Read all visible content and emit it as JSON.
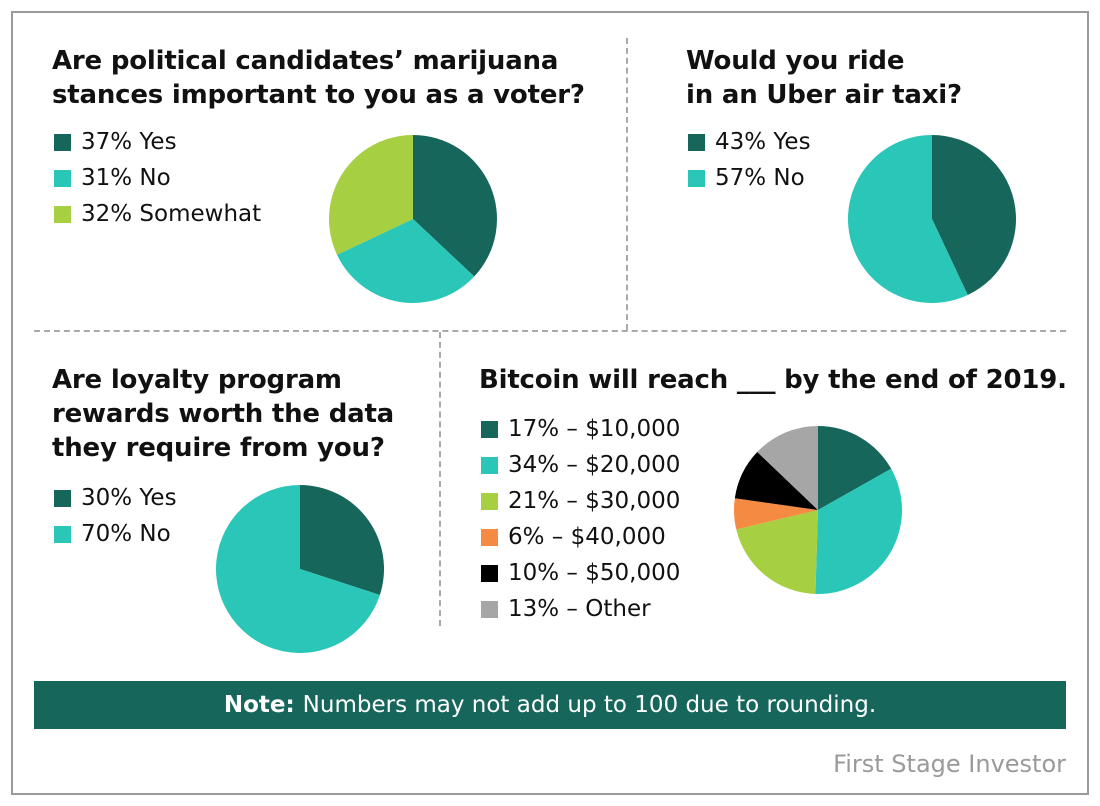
{
  "chart_data": [
    {
      "type": "pie",
      "title_lines": [
        "Are political candidates’ marijuana",
        "stances important to you as a voter?"
      ],
      "slices": [
        {
          "label": "37% Yes",
          "value": 37,
          "color": "#17665c"
        },
        {
          "label": "31% No",
          "value": 31,
          "color": "#2ac6b8"
        },
        {
          "label": "32% Somewhat",
          "value": 32,
          "color": "#a7cf42"
        }
      ]
    },
    {
      "type": "pie",
      "title_lines": [
        "Would you ride",
        "in an Uber air taxi?"
      ],
      "slices": [
        {
          "label": "43% Yes",
          "value": 43,
          "color": "#17665c"
        },
        {
          "label": "57% No",
          "value": 57,
          "color": "#2ac6b8"
        }
      ]
    },
    {
      "type": "pie",
      "title_lines": [
        "Are loyalty program",
        "rewards worth the data",
        "they require from you?"
      ],
      "slices": [
        {
          "label": "30% Yes",
          "value": 30,
          "color": "#17665c"
        },
        {
          "label": "70% No",
          "value": 70,
          "color": "#2ac6b8"
        }
      ]
    },
    {
      "type": "pie",
      "title_lines": [
        "Bitcoin will reach ___ by the end of 2019."
      ],
      "slices": [
        {
          "label": "17% – $10,000",
          "value": 17,
          "color": "#17665c"
        },
        {
          "label": "34% – $20,000",
          "value": 34,
          "color": "#2ac6b8"
        },
        {
          "label": "21% – $30,000",
          "value": 21,
          "color": "#a7cf42"
        },
        {
          "label": "6% – $40,000",
          "value": 6,
          "color": "#f58a42"
        },
        {
          "label": "10% – $50,000",
          "value": 10,
          "color": "#000000"
        },
        {
          "label": "13% – Other",
          "value": 13,
          "color": "#a6a6a6"
        }
      ]
    }
  ],
  "note": {
    "label": "Note:",
    "text": "Numbers may not add up to 100 due to rounding."
  },
  "source": "First Stage Investor"
}
